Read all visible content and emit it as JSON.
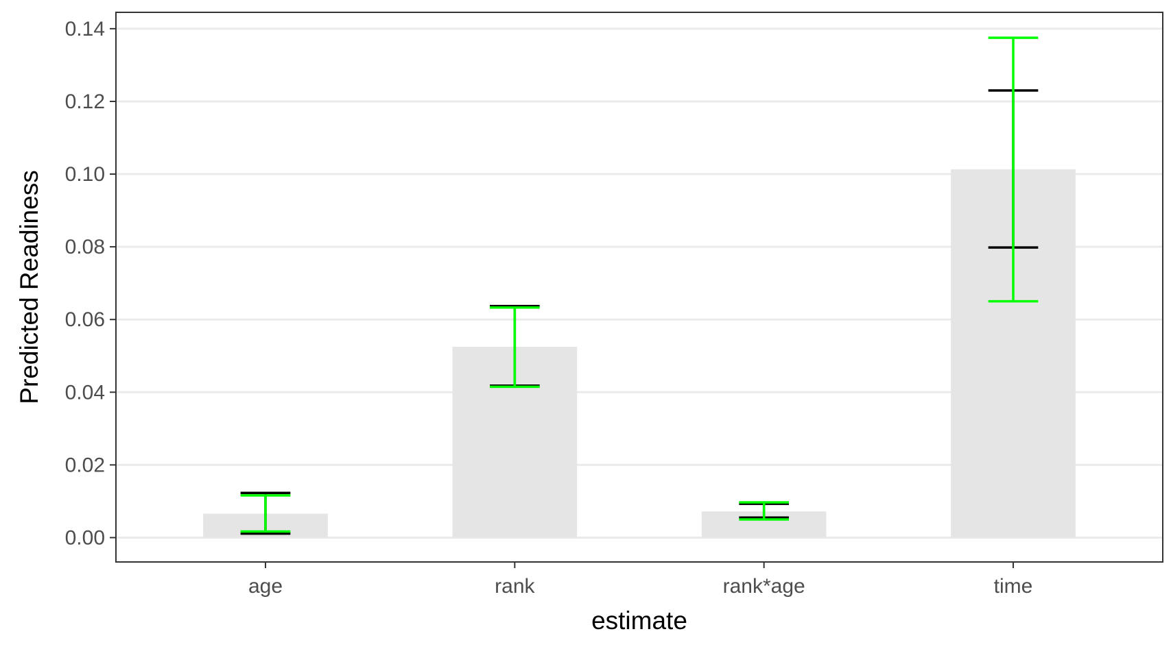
{
  "chart_data": {
    "type": "bar",
    "title": "",
    "xlabel": "estimate",
    "ylabel": "Predicted Readiness",
    "categories": [
      "age",
      "rank",
      "rank*age",
      "time"
    ],
    "values": [
      0.0066,
      0.0525,
      0.0072,
      0.1013
    ],
    "error_bars": {
      "inner": {
        "color": "#000000",
        "low": [
          0.0011,
          0.0418,
          0.0055,
          0.0798
        ],
        "high": [
          0.0123,
          0.0637,
          0.0093,
          0.123
        ]
      },
      "outer": {
        "color": "#00ff00",
        "low": [
          0.0017,
          0.0415,
          0.005,
          0.065
        ],
        "high": [
          0.0116,
          0.0633,
          0.0097,
          0.1375
        ]
      }
    },
    "ylim": [
      -0.0067,
      0.1445
    ],
    "y_ticks": [
      0.0,
      0.02,
      0.04,
      0.06,
      0.08,
      0.1,
      0.12,
      0.14
    ],
    "y_tick_labels": [
      "0.00",
      "0.02",
      "0.04",
      "0.06",
      "0.08",
      "0.10",
      "0.12",
      "0.14"
    ],
    "bar_color": "#e5e5e5",
    "grid": true,
    "grid_color": "#ebebeb",
    "legend": "none"
  }
}
